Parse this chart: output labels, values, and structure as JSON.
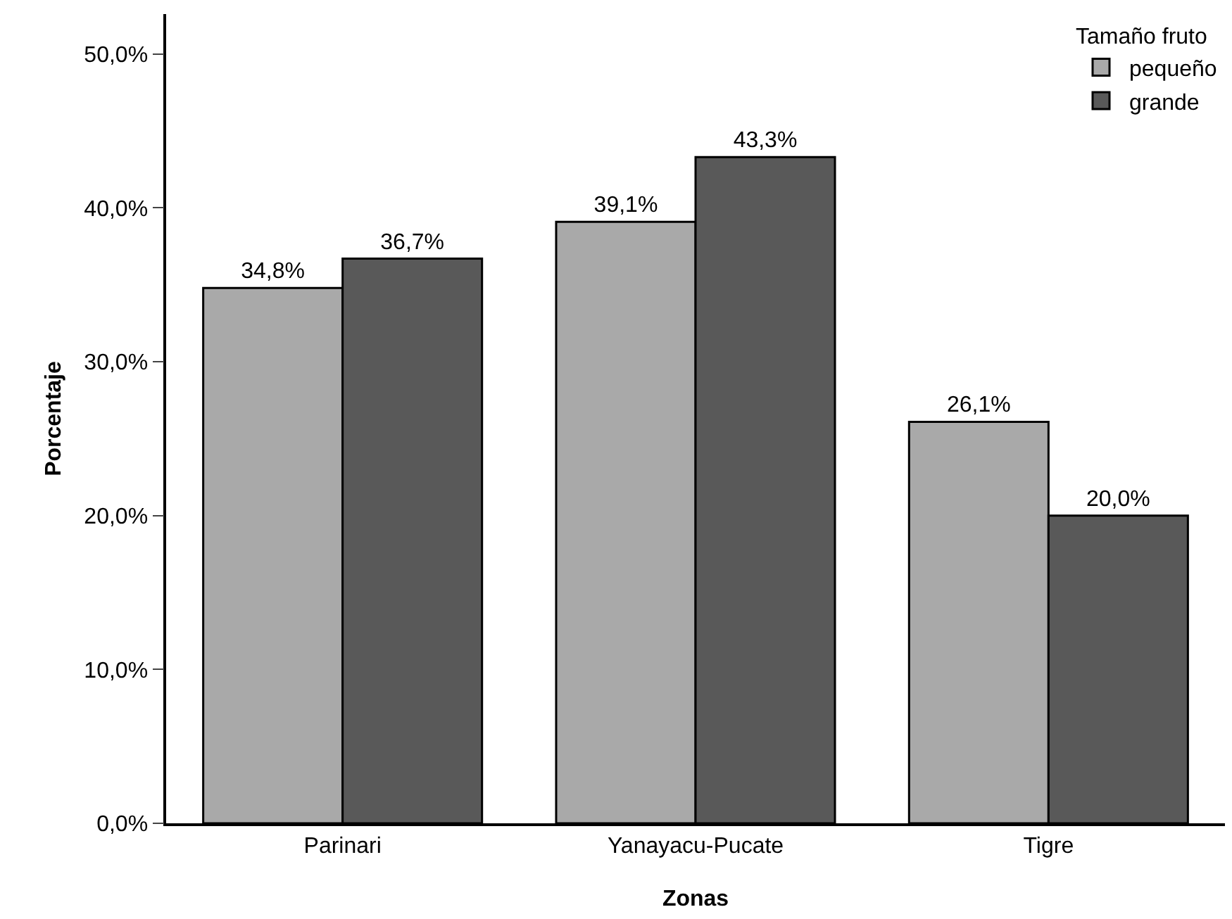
{
  "chart_data": {
    "type": "bar",
    "xlabel": "Zonas",
    "ylabel": "Porcentaje",
    "legend_title": "Tamaño fruto",
    "categories": [
      "Parinari",
      "Yanayacu-Pucate",
      "Tigre"
    ],
    "series": [
      {
        "name": "pequeño",
        "color": "#a9a9a9",
        "values": [
          34.8,
          39.1,
          26.1
        ],
        "value_labels": [
          "34,8%",
          "39,1%",
          "26,1%"
        ]
      },
      {
        "name": "grande",
        "color": "#595959",
        "values": [
          36.7,
          43.3,
          20.0
        ],
        "value_labels": [
          "36,7%",
          "43,3%",
          "20,0%"
        ]
      }
    ],
    "ylim": [
      0,
      52.6
    ],
    "yticks": [
      {
        "value": 0,
        "label": "0,0%"
      },
      {
        "value": 10,
        "label": "10,0%"
      },
      {
        "value": 20,
        "label": "20,0%"
      },
      {
        "value": 30,
        "label": "30,0%"
      },
      {
        "value": 40,
        "label": "40,0%"
      },
      {
        "value": 50,
        "label": "50,0%"
      }
    ],
    "grid": false,
    "legend": "top right"
  }
}
